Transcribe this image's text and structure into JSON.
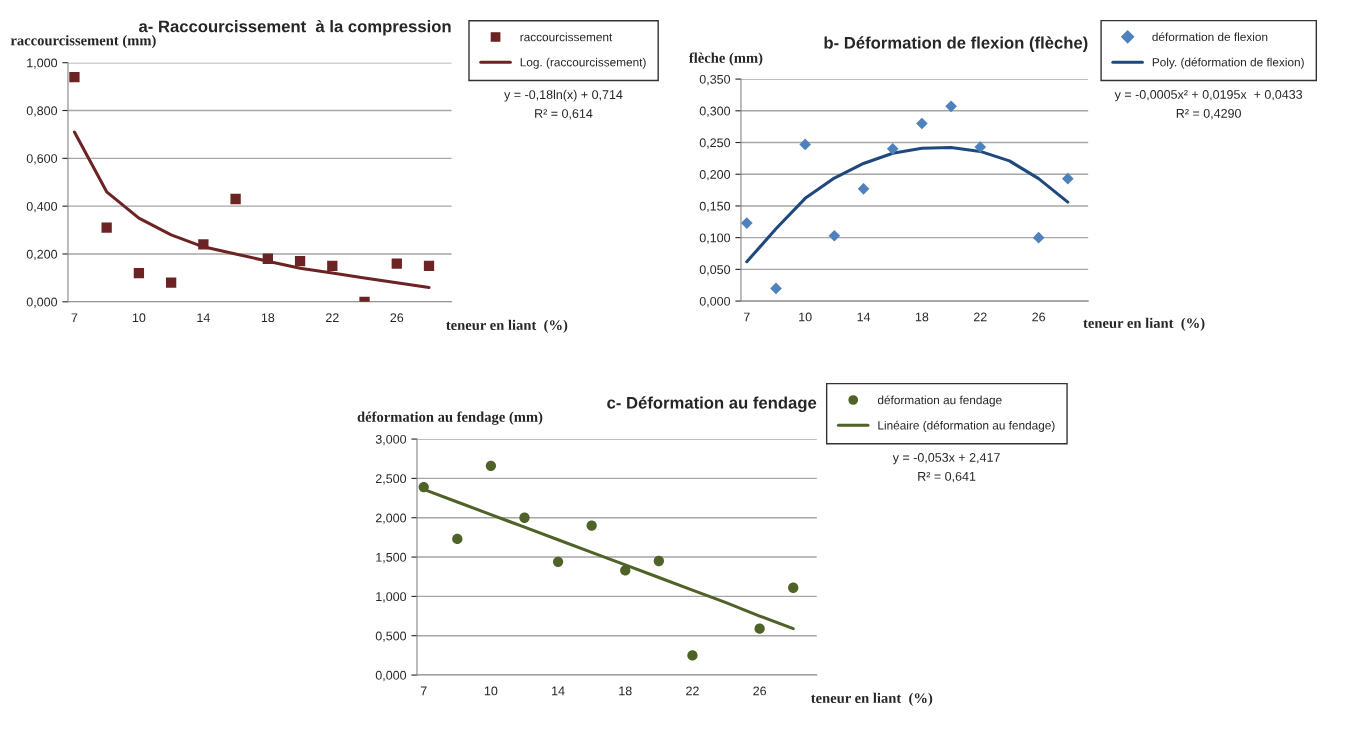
{
  "chart_data": [
    {
      "type": "scatter",
      "title": "a- Raccourcissement  à la compression",
      "xlabel": "teneur en liant  (%)",
      "ylabel": "raccourcissement (mm)",
      "categories": [
        "7",
        null,
        "10",
        null,
        "14",
        null,
        "18",
        null,
        "22",
        null,
        "26",
        null
      ],
      "series": [
        {
          "name": "raccourcissement",
          "color": "#6b2423",
          "marker": "square",
          "values": [
            0.94,
            0.31,
            0.12,
            0.08,
            0.24,
            0.43,
            0.18,
            0.17,
            0.15,
            0.0,
            0.16,
            0.15
          ]
        },
        {
          "name": "Log. (raccourcissement)",
          "type": "line",
          "color": "#6b2423",
          "line_style": "solid",
          "values": [
            0.71,
            0.46,
            0.35,
            0.28,
            0.23,
            0.2,
            0.17,
            0.14,
            0.12,
            0.1,
            0.08,
            0.06
          ]
        }
      ],
      "ylim": [
        0,
        1
      ],
      "yticks": [
        {
          "value": 0,
          "label": "0,000"
        },
        {
          "value": 0.2,
          "label": "0,200"
        },
        {
          "value": 0.4,
          "label": "0,400"
        },
        {
          "value": 0.6,
          "label": "0,600"
        },
        {
          "value": 0.8,
          "label": "0,800"
        },
        {
          "value": 1,
          "label": "1,000"
        }
      ],
      "grid": "y",
      "legend": "top right",
      "annotations": [
        "y = -0,18ln(x) + 0,714",
        "R² = 0,614"
      ]
    },
    {
      "type": "scatter",
      "title": "b- Déformation de flexion (flèche)",
      "xlabel": "teneur en liant  (%)",
      "ylabel": "flèche (mm)",
      "categories": [
        "7",
        null,
        "10",
        null,
        "14",
        null,
        "18",
        null,
        "22",
        null,
        "26",
        null
      ],
      "series": [
        {
          "name": "déformation de flexion",
          "color": "#4f81bd",
          "marker": "diamond",
          "values": [
            0.123,
            0.02,
            0.247,
            0.103,
            0.177,
            0.24,
            0.28,
            0.307,
            0.243,
            null,
            0.1,
            0.193
          ]
        },
        {
          "name": "Poly. (déformation de flexion)",
          "type": "line",
          "color": "#1f497d",
          "line_style": "solid",
          "values": [
            0.062,
            0.114,
            0.162,
            0.194,
            0.217,
            0.233,
            0.241,
            0.242,
            0.236,
            0.221,
            0.193,
            0.156
          ]
        }
      ],
      "ylim": [
        0,
        0.35
      ],
      "yticks": [
        {
          "value": 0,
          "label": "0,000"
        },
        {
          "value": 0.05,
          "label": "0,050"
        },
        {
          "value": 0.1,
          "label": "0,100"
        },
        {
          "value": 0.15,
          "label": "0,150"
        },
        {
          "value": 0.2,
          "label": "0,200"
        },
        {
          "value": 0.25,
          "label": "0,250"
        },
        {
          "value": 0.3,
          "label": "0,300"
        },
        {
          "value": 0.35,
          "label": "0,350"
        }
      ],
      "grid": "y",
      "legend": "top right",
      "annotations": [
        "y = -0,0005x² + 0,0195x  + 0,0433",
        "R² = 0,4290"
      ]
    },
    {
      "type": "scatter",
      "title": "c- Déformation au fendage",
      "xlabel": "teneur en liant  (%)",
      "ylabel": "déformation au fendage (mm)",
      "categories": [
        "7",
        null,
        "10",
        null,
        "14",
        null,
        "18",
        null,
        "22",
        null,
        "26",
        null
      ],
      "series": [
        {
          "name": "déformation au fendage",
          "color": "#4f6228",
          "marker": "circle",
          "values": [
            2.39,
            1.73,
            2.66,
            2.0,
            1.44,
            1.9,
            1.33,
            1.45,
            0.25,
            null,
            0.59,
            1.11
          ]
        },
        {
          "name": "Linéaire (déformation au fendage)",
          "type": "line",
          "color": "#4f6228",
          "line_style": "solid",
          "values": [
            2.36,
            2.2,
            2.04,
            1.88,
            1.72,
            1.56,
            1.4,
            1.24,
            1.08,
            0.92,
            0.75,
            0.59
          ]
        }
      ],
      "ylim": [
        0,
        3
      ],
      "yticks": [
        {
          "value": 0,
          "label": "0,000"
        },
        {
          "value": 0.5,
          "label": "0,500"
        },
        {
          "value": 1,
          "label": "1,000"
        },
        {
          "value": 1.5,
          "label": "1,500"
        },
        {
          "value": 2,
          "label": "2,000"
        },
        {
          "value": 2.5,
          "label": "2,500"
        },
        {
          "value": 3,
          "label": "3,000"
        }
      ],
      "grid": "y",
      "legend": "top right",
      "annotations": [
        "y = -0,053x + 2,417",
        "R² = 0,641"
      ]
    }
  ]
}
